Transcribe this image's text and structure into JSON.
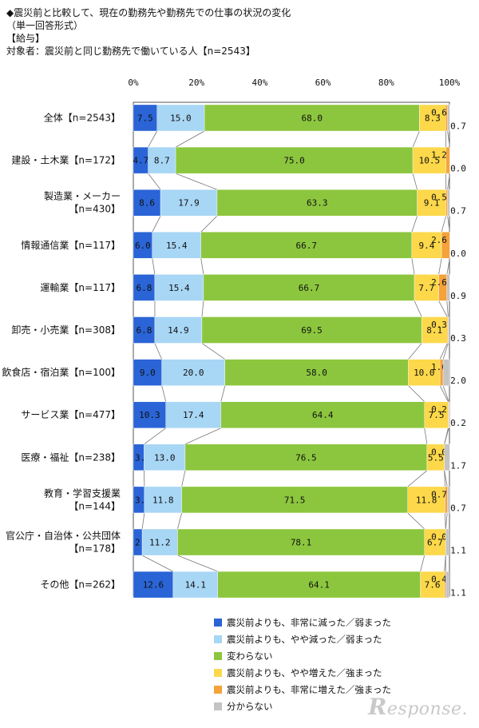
{
  "header": {
    "title": "◆震災前と比較して、現在の勤務先や勤務先での仕事の状況の変化",
    "subtitle": "（単一回答形式）",
    "section": "【給与】",
    "target": "対象者：震災前と同じ勤務先で働いている人【n=2543】"
  },
  "chart_data": {
    "type": "bar",
    "orientation": "horizontal-stacked-100",
    "x_ticks": [
      "0%",
      "20%",
      "40%",
      "60%",
      "80%",
      "100%"
    ],
    "xlim": [
      0,
      100
    ],
    "categories": [
      "全体【n=2543】",
      "建設・土木業【n=172】",
      "製造業・メーカー\n【n=430】",
      "情報通信業【n=117】",
      "運輸業【n=117】",
      "卸売・小売業【n=308】",
      "飲食店・宿泊業【n=100】",
      "サービス業【n=477】",
      "医療・福祉【n=238】",
      "教育・学習支援業\n【n=144】",
      "官公庁・自治体・公共団体\n【n=178】",
      "その他【n=262】"
    ],
    "series": [
      {
        "name": "震災前よりも、非常に減った／弱まった",
        "color": "#2a64d6",
        "values": [
          7.5,
          4.7,
          8.6,
          6.0,
          6.8,
          6.8,
          9.0,
          10.3,
          3.4,
          3.5,
          2.8,
          12.6
        ]
      },
      {
        "name": "震災前よりも、やや減った／弱まった",
        "color": "#a8d6f5",
        "values": [
          15.0,
          8.7,
          17.9,
          15.4,
          15.4,
          14.9,
          20.0,
          17.4,
          13.0,
          11.8,
          11.2,
          14.1
        ]
      },
      {
        "name": "変わらない",
        "color": "#8cc63e",
        "values": [
          68.0,
          75.0,
          63.3,
          66.7,
          66.7,
          69.5,
          58.0,
          64.4,
          76.5,
          71.5,
          78.1,
          64.1
        ]
      },
      {
        "name": "震災前よりも、やや増えた／強まった",
        "color": "#fcd84a",
        "values": [
          8.3,
          10.5,
          9.1,
          9.4,
          7.7,
          8.1,
          10.0,
          7.5,
          5.5,
          11.8,
          6.7,
          7.6
        ]
      },
      {
        "name": "震災前よりも、非常に増えた／強まった",
        "color": "#f5a23a",
        "values": [
          0.6,
          1.2,
          0.5,
          2.6,
          2.6,
          0.3,
          1.0,
          0.2,
          0.0,
          0.7,
          0.0,
          0.4
        ]
      },
      {
        "name": "分からない",
        "color": "#c4c4c4",
        "values": [
          0.7,
          0.0,
          0.7,
          0.0,
          0.9,
          0.3,
          2.0,
          0.2,
          1.7,
          0.7,
          1.1,
          1.1
        ]
      }
    ],
    "legend_position": "bottom-right"
  },
  "logo_text": "Response."
}
